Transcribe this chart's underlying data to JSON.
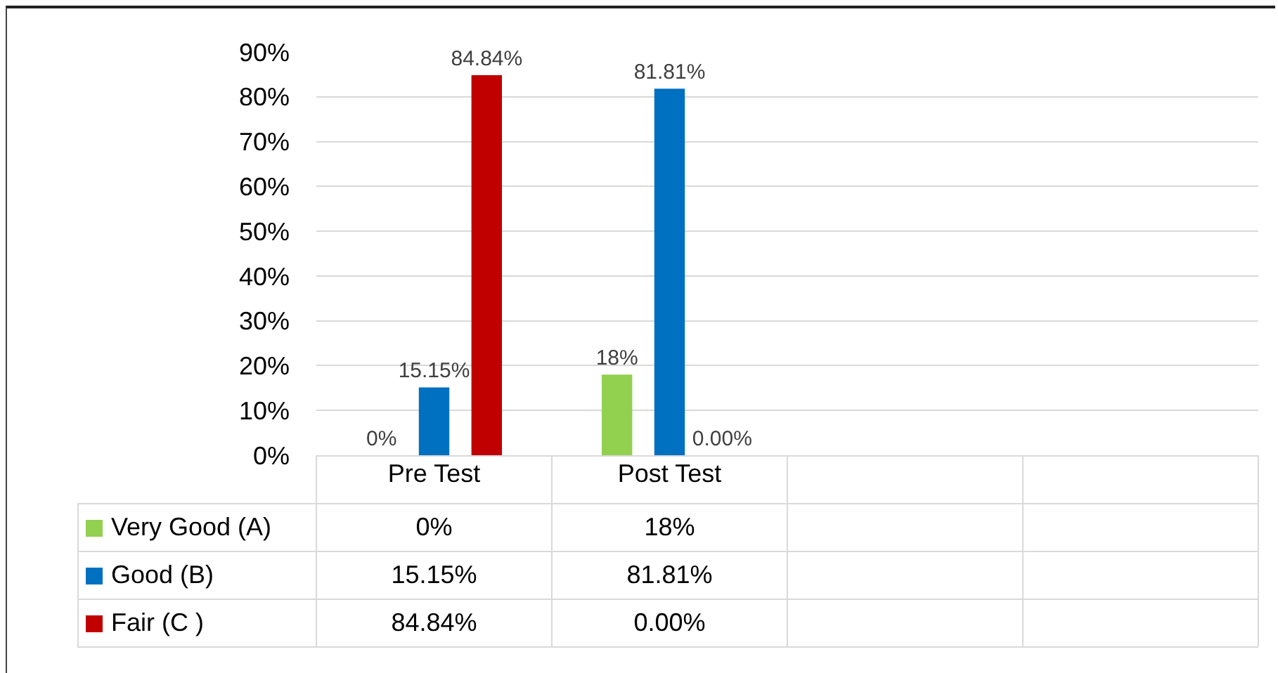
{
  "chart_data": {
    "type": "bar",
    "categories": [
      "Pre Test",
      "Post Test",
      null,
      null
    ],
    "series": [
      {
        "name": "Very Good (A)",
        "color": "#92d050",
        "values": [
          0,
          18,
          null,
          null
        ],
        "value_labels": [
          "0%",
          "18%",
          null,
          null
        ]
      },
      {
        "name": "Good (B)",
        "color": "#0070c0",
        "values": [
          15.15,
          81.81,
          null,
          null
        ],
        "value_labels": [
          "15.15%",
          "81.81%",
          null,
          null
        ]
      },
      {
        "name": "Fair (C )",
        "color": "#c00000",
        "values": [
          84.84,
          0,
          null,
          null
        ],
        "value_labels": [
          "84.84%",
          "0.00%",
          null,
          null
        ]
      }
    ],
    "ylim": [
      0,
      90
    ],
    "yticks": [
      {
        "value": 0,
        "label": "0%"
      },
      {
        "value": 10,
        "label": "10%"
      },
      {
        "value": 20,
        "label": "20%"
      },
      {
        "value": 30,
        "label": "30%"
      },
      {
        "value": 40,
        "label": "40%"
      },
      {
        "value": 50,
        "label": "50%"
      },
      {
        "value": 60,
        "label": "60%"
      },
      {
        "value": 70,
        "label": "70%"
      },
      {
        "value": 80,
        "label": "80%"
      },
      {
        "value": 90,
        "label": "90%"
      }
    ],
    "grid": "y",
    "legend": "bottom left"
  }
}
